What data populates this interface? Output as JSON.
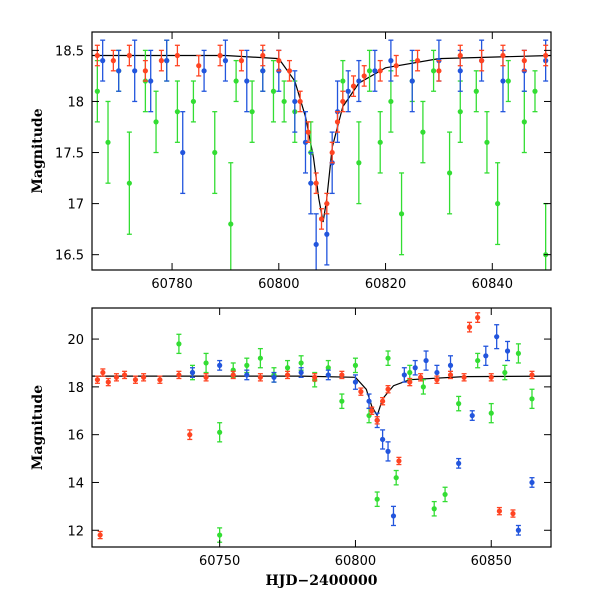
{
  "chart_data": [
    {
      "type": "scatter",
      "title": "",
      "xlabel": "",
      "ylabel": "Magnitude",
      "xlim": [
        60765,
        60851
      ],
      "ylim": [
        18.68,
        16.35
      ],
      "y_inverted": true,
      "x_ticks": [
        60780,
        60800,
        60820,
        60840
      ],
      "y_ticks": [
        16.5,
        17,
        17.5,
        18,
        18.5
      ],
      "grid": false,
      "legend": "none",
      "model_curve": {
        "color": "#000000",
        "x": [
          60765,
          60790,
          60800,
          60803,
          60805,
          60806.5,
          60807.5,
          60808.3,
          60809,
          60810,
          60812,
          60815,
          60820,
          60830,
          60851
        ],
        "y": [
          18.45,
          18.45,
          18.42,
          18.2,
          17.85,
          17.45,
          17.05,
          16.82,
          17.05,
          17.55,
          17.95,
          18.18,
          18.33,
          18.42,
          18.45
        ]
      },
      "series": [
        {
          "color": "#33dd33",
          "x": [
            60766,
            60768,
            60770,
            60772,
            60775,
            60777,
            60779,
            60781,
            60784,
            60788,
            60791,
            60792,
            60795,
            60797,
            60799,
            60801,
            60803,
            60806,
            60812,
            60815,
            60817,
            60819,
            60821,
            60823,
            60825,
            60827,
            60829,
            60832,
            60834,
            60837,
            60839,
            60841,
            60843,
            60846,
            60848,
            60850
          ],
          "y": [
            18.1,
            17.6,
            18.3,
            17.2,
            18.2,
            17.8,
            18.4,
            17.9,
            18.0,
            17.5,
            16.8,
            18.2,
            17.9,
            18.3,
            18.1,
            18.0,
            17.9,
            17.5,
            18.2,
            17.4,
            18.3,
            17.6,
            18.0,
            16.9,
            18.2,
            17.7,
            18.3,
            17.3,
            17.9,
            18.1,
            17.6,
            17.0,
            18.2,
            17.8,
            18.1,
            16.5
          ],
          "err": [
            0.3,
            0.4,
            0.2,
            0.5,
            0.3,
            0.3,
            0.2,
            0.3,
            0.2,
            0.4,
            0.6,
            0.2,
            0.3,
            0.2,
            0.3,
            0.2,
            0.3,
            0.3,
            0.2,
            0.4,
            0.2,
            0.3,
            0.3,
            0.4,
            0.2,
            0.3,
            0.2,
            0.4,
            0.3,
            0.2,
            0.3,
            0.4,
            0.2,
            0.3,
            0.2,
            0.5
          ]
        },
        {
          "color": "#2255dd",
          "x": [
            60767,
            60770,
            60773,
            60776,
            60779,
            60782,
            60786,
            60790,
            60794,
            60797,
            60800,
            60803,
            60805,
            60806,
            60807,
            60809,
            60810,
            60811,
            60813,
            60815,
            60818,
            60821,
            60825,
            60830,
            60834,
            60838,
            60842,
            60846,
            60850
          ],
          "y": [
            18.4,
            18.3,
            18.3,
            18.2,
            18.4,
            17.5,
            18.3,
            18.4,
            18.2,
            18.3,
            18.3,
            18.0,
            17.6,
            17.2,
            16.6,
            16.7,
            17.4,
            17.9,
            18.1,
            18.2,
            18.3,
            18.4,
            18.2,
            18.4,
            18.3,
            18.4,
            18.2,
            18.3,
            18.4
          ],
          "err": [
            0.2,
            0.2,
            0.3,
            0.3,
            0.2,
            0.4,
            0.2,
            0.2,
            0.3,
            0.2,
            0.2,
            0.3,
            0.3,
            0.3,
            0.3,
            0.3,
            0.3,
            0.3,
            0.2,
            0.2,
            0.2,
            0.2,
            0.3,
            0.2,
            0.2,
            0.2,
            0.3,
            0.2,
            0.2
          ]
        },
        {
          "color": "#ff4422",
          "x": [
            60766,
            60769,
            60772,
            60775,
            60778,
            60781,
            60785,
            60789,
            60793,
            60797,
            60800,
            60802,
            60804,
            60805.5,
            60807,
            60808,
            60809,
            60810,
            60811,
            60812,
            60814,
            60816,
            60819,
            60822,
            60826,
            60830,
            60834,
            60838,
            60842,
            60846,
            60850
          ],
          "y": [
            18.45,
            18.4,
            18.45,
            18.3,
            18.4,
            18.45,
            18.35,
            18.45,
            18.4,
            18.45,
            18.4,
            18.3,
            18.0,
            17.7,
            17.2,
            16.85,
            17.0,
            17.5,
            17.8,
            18.0,
            18.15,
            18.25,
            18.3,
            18.35,
            18.4,
            18.3,
            18.45,
            18.4,
            18.45,
            18.4,
            18.45
          ],
          "err": [
            0.1,
            0.1,
            0.1,
            0.1,
            0.1,
            0.1,
            0.1,
            0.1,
            0.1,
            0.1,
            0.1,
            0.1,
            0.1,
            0.1,
            0.1,
            0.1,
            0.1,
            0.1,
            0.1,
            0.1,
            0.1,
            0.1,
            0.1,
            0.1,
            0.1,
            0.1,
            0.1,
            0.1,
            0.1,
            0.1,
            0.1
          ]
        }
      ]
    },
    {
      "type": "scatter",
      "title": "",
      "xlabel": "HJD−2400000",
      "ylabel": "Magnitude",
      "xlim": [
        60703,
        60872
      ],
      "ylim": [
        21.3,
        11.3
      ],
      "y_inverted": true,
      "x_ticks": [
        60750,
        60800,
        60850
      ],
      "y_ticks": [
        12,
        14,
        16,
        18,
        20
      ],
      "grid": false,
      "legend": "none",
      "model_curve": {
        "color": "#000000",
        "x": [
          60703,
          60780,
          60800,
          60804,
          60806,
          60808,
          60810,
          60814,
          60820,
          60840,
          60872
        ],
        "y": [
          18.45,
          18.45,
          18.4,
          17.9,
          17.2,
          16.8,
          17.5,
          18.05,
          18.3,
          18.43,
          18.45
        ]
      },
      "series": [
        {
          "color": "#33dd33",
          "x": [
            60735,
            60740,
            60745,
            60750,
            60750,
            60755,
            60760,
            60765,
            60770,
            60775,
            60780,
            60785,
            60790,
            60795,
            60800,
            60805,
            60808,
            60812,
            60815,
            60820,
            60825,
            60829,
            60833,
            60838,
            60845,
            60850,
            60855,
            60860,
            60865
          ],
          "y": [
            19.8,
            18.6,
            19.0,
            11.8,
            16.1,
            18.7,
            18.9,
            19.2,
            18.5,
            18.8,
            19.0,
            18.3,
            18.8,
            17.4,
            18.9,
            16.8,
            13.3,
            19.2,
            14.2,
            18.6,
            18.0,
            12.9,
            13.5,
            17.3,
            19.1,
            16.9,
            18.6,
            19.4,
            17.5
          ],
          "err": [
            0.4,
            0.3,
            0.4,
            0.3,
            0.4,
            0.3,
            0.3,
            0.4,
            0.3,
            0.3,
            0.3,
            0.3,
            0.3,
            0.3,
            0.3,
            0.3,
            0.3,
            0.3,
            0.3,
            0.3,
            0.3,
            0.3,
            0.3,
            0.3,
            0.3,
            0.4,
            0.3,
            0.4,
            0.4
          ]
        },
        {
          "color": "#2255dd",
          "x": [
            60740,
            60750,
            60760,
            60770,
            60780,
            60790,
            60800,
            60805,
            60808,
            60810,
            60812,
            60814,
            60818,
            60822,
            60826,
            60830,
            60835,
            60838,
            60843,
            60848,
            60852,
            60856,
            60860,
            60865
          ],
          "y": [
            18.6,
            18.9,
            18.5,
            18.4,
            18.6,
            18.5,
            18.2,
            17.4,
            16.6,
            15.8,
            15.3,
            12.6,
            18.5,
            18.8,
            19.1,
            18.6,
            18.9,
            14.8,
            16.8,
            19.3,
            20.1,
            19.5,
            12.0,
            14.0
          ],
          "err": [
            0.2,
            0.2,
            0.2,
            0.2,
            0.2,
            0.2,
            0.3,
            0.3,
            0.3,
            0.4,
            0.4,
            0.4,
            0.3,
            0.3,
            0.4,
            0.3,
            0.4,
            0.2,
            0.2,
            0.4,
            0.5,
            0.4,
            0.2,
            0.2
          ]
        },
        {
          "color": "#ff4422",
          "x": [
            60705,
            60706,
            60707,
            60709,
            60712,
            60715,
            60719,
            60722,
            60728,
            60735,
            60739,
            60745,
            60755,
            60765,
            60775,
            60785,
            60795,
            60802,
            60806,
            60808,
            60810,
            60812,
            60816,
            60820,
            60824,
            60830,
            60835,
            60840,
            60842,
            60845,
            60850,
            60853,
            60858,
            60865
          ],
          "y": [
            18.3,
            11.8,
            18.6,
            18.2,
            18.4,
            18.5,
            18.3,
            18.4,
            18.3,
            18.5,
            16.0,
            18.4,
            18.5,
            18.4,
            18.5,
            18.4,
            18.5,
            17.8,
            17.0,
            16.6,
            17.4,
            17.9,
            14.9,
            18.2,
            18.4,
            18.3,
            18.5,
            18.4,
            20.5,
            20.9,
            18.4,
            12.8,
            12.7,
            18.5
          ],
          "err": [
            0.15,
            0.15,
            0.15,
            0.15,
            0.15,
            0.15,
            0.15,
            0.15,
            0.15,
            0.15,
            0.2,
            0.15,
            0.15,
            0.15,
            0.15,
            0.15,
            0.15,
            0.15,
            0.15,
            0.15,
            0.15,
            0.15,
            0.15,
            0.15,
            0.15,
            0.15,
            0.15,
            0.15,
            0.2,
            0.2,
            0.15,
            0.15,
            0.15,
            0.15
          ]
        }
      ]
    }
  ]
}
